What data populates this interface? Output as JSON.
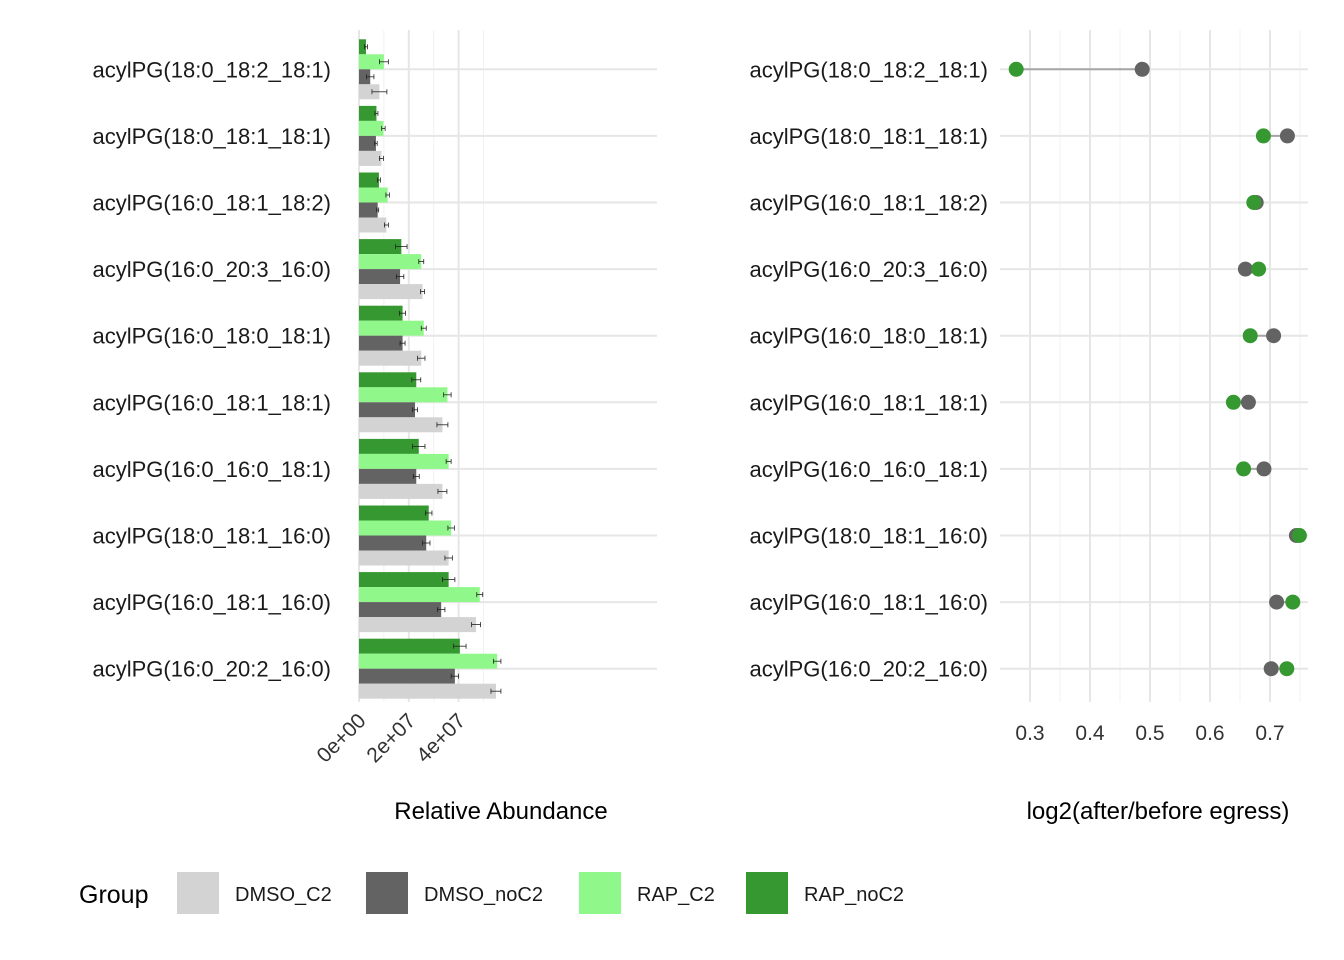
{
  "chart_data": [
    {
      "type": "bar",
      "orientation": "horizontal",
      "categories": [
        "acylPG(18:0_18:2_18:1)",
        "acylPG(18:0_18:1_18:1)",
        "acylPG(16:0_18:1_18:2)",
        "acylPG(16:0_20:3_16:0)",
        "acylPG(16:0_18:0_18:1)",
        "acylPG(16:0_18:1_18:1)",
        "acylPG(16:0_16:0_18:1)",
        "acylPG(18:0_18:1_16:0)",
        "acylPG(16:0_18:1_16:0)",
        "acylPG(16:0_20:2_16:0)"
      ],
      "series": [
        {
          "name": "DMSO_C2",
          "color": "#d3d3d3",
          "values": [
            8200000,
            9000000,
            11000000,
            25500000,
            25000000,
            33500000,
            33500000,
            36000000,
            47000000,
            55000000
          ],
          "errors": [
            3000000,
            800000,
            800000,
            800000,
            1500000,
            2200000,
            1800000,
            1500000,
            1800000,
            2000000
          ]
        },
        {
          "name": "DMSO_noC2",
          "color": "#636363",
          "values": [
            4500000,
            6800000,
            7500000,
            16500000,
            17500000,
            22500000,
            23000000,
            27000000,
            33000000,
            38500000
          ],
          "errors": [
            1500000,
            500000,
            400000,
            1500000,
            1000000,
            1000000,
            1200000,
            1500000,
            1500000,
            1500000
          ]
        },
        {
          "name": "RAP_C2",
          "color": "#90f88a",
          "values": [
            10000000,
            9800000,
            11500000,
            25000000,
            26000000,
            35500000,
            36000000,
            37000000,
            48500000,
            55500000
          ],
          "errors": [
            1800000,
            700000,
            700000,
            1000000,
            1000000,
            1500000,
            1000000,
            1300000,
            1200000,
            1500000
          ]
        },
        {
          "name": "RAP_noC2",
          "color": "#359830",
          "values": [
            2800000,
            7000000,
            8000000,
            17000000,
            17500000,
            23000000,
            24000000,
            28000000,
            36000000,
            40500000
          ],
          "errors": [
            600000,
            600000,
            600000,
            2300000,
            1200000,
            1800000,
            2500000,
            1300000,
            2500000,
            2500000
          ]
        }
      ],
      "xlabel": "Relative Abundance",
      "ylabel": "",
      "xticks": [
        "0e+00",
        "2e+07",
        "4e+07"
      ],
      "xtick_values": [
        0,
        20000000,
        40000000
      ],
      "xlim": [
        0,
        60000000
      ],
      "grid": true
    },
    {
      "type": "scatter",
      "style": "dumbbell",
      "categories": [
        "acylPG(18:0_18:2_18:1)",
        "acylPG(18:0_18:1_18:1)",
        "acylPG(16:0_18:1_18:2)",
        "acylPG(16:0_20:3_16:0)",
        "acylPG(16:0_18:0_18:1)",
        "acylPG(16:0_18:1_18:1)",
        "acylPG(16:0_16:0_18:1)",
        "acylPG(18:0_18:1_16:0)",
        "acylPG(16:0_18:1_16:0)",
        "acylPG(16:0_20:2_16:0)"
      ],
      "series": [
        {
          "name": "DMSO",
          "color": "#636363",
          "values": [
            0.487,
            0.729,
            0.677,
            0.659,
            0.706,
            0.664,
            0.69,
            0.744,
            0.711,
            0.702
          ]
        },
        {
          "name": "RAP",
          "color": "#359830",
          "values": [
            0.277,
            0.689,
            0.673,
            0.681,
            0.667,
            0.639,
            0.656,
            0.749,
            0.738,
            0.728
          ]
        }
      ],
      "xlabel": "log2(after/before egress)",
      "xticks": [
        "0.3",
        "0.4",
        "0.5",
        "0.6",
        "0.7"
      ],
      "xtick_values": [
        0.3,
        0.4,
        0.5,
        0.6,
        0.7
      ],
      "xlim": [
        0.265,
        0.752
      ],
      "grid": true
    }
  ],
  "legend": {
    "title": "Group",
    "items": [
      {
        "label": "DMSO_C2",
        "color": "#d3d3d3"
      },
      {
        "label": "DMSO_noC2",
        "color": "#636363"
      },
      {
        "label": "RAP_C2",
        "color": "#90f88a"
      },
      {
        "label": "RAP_noC2",
        "color": "#359830"
      }
    ]
  }
}
